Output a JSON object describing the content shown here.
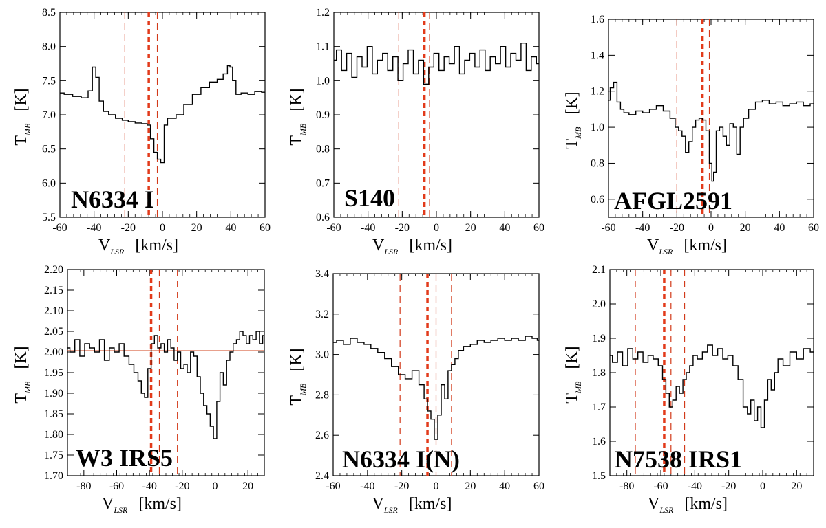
{
  "figure": {
    "description_free": true
  },
  "chart_data": [
    {
      "type": "line",
      "title": "N6334 I",
      "xlabel": "V_LSR [km/s]",
      "ylabel": "T_MB [K]",
      "xlim": [
        -60,
        60
      ],
      "ylim": [
        5.5,
        8.5
      ],
      "xticks": [
        -60,
        -40,
        -20,
        0,
        20,
        40,
        60
      ],
      "yticks": [
        "5.5",
        "6.0",
        "6.5",
        "7.0",
        "7.5",
        "8.0",
        "8.5"
      ],
      "thin_dashed_lines": [
        -22,
        -3
      ],
      "thick_dashed_lines": [
        -8
      ],
      "fit_line": null,
      "series": [
        {
          "name": "spectrum",
          "x": [
            -60,
            -55,
            -50,
            -45,
            -42,
            -40,
            -38,
            -36,
            -33,
            -30,
            -25,
            -22,
            -18,
            -14,
            -10,
            -8,
            -6,
            -4,
            -2,
            0,
            2,
            4,
            6,
            10,
            15,
            20,
            25,
            30,
            34,
            37,
            39,
            40,
            42,
            44,
            48,
            52,
            56,
            60
          ],
          "y": [
            7.32,
            7.3,
            7.27,
            7.25,
            7.35,
            7.7,
            7.55,
            7.2,
            7.05,
            7.0,
            6.95,
            6.92,
            6.9,
            6.88,
            6.87,
            6.85,
            6.65,
            6.45,
            6.35,
            6.3,
            6.85,
            6.95,
            6.95,
            7.0,
            7.15,
            7.3,
            7.4,
            7.48,
            7.52,
            7.6,
            7.72,
            7.7,
            7.5,
            7.3,
            7.32,
            7.3,
            7.34,
            7.33
          ]
        }
      ]
    },
    {
      "type": "line",
      "title": "S140",
      "xlabel": "V_LSR [km/s]",
      "ylabel": "T_MB [K]",
      "xlim": [
        -60,
        60
      ],
      "ylim": [
        0.6,
        1.2
      ],
      "xticks": [
        -60,
        -40,
        -20,
        0,
        20,
        40,
        60
      ],
      "yticks": [
        "0.6",
        "0.7",
        "0.8",
        "0.9",
        "1.0",
        "1.1",
        "1.2"
      ],
      "thin_dashed_lines": [
        -22,
        -4
      ],
      "thick_dashed_lines": [
        -7
      ],
      "fit_line": null,
      "series": [
        {
          "name": "spectrum",
          "x": [
            -60,
            -57,
            -54,
            -51,
            -48,
            -45,
            -42,
            -39,
            -36,
            -33,
            -30,
            -27,
            -24,
            -21,
            -18,
            -15,
            -12,
            -9,
            -6,
            -3,
            0,
            3,
            6,
            9,
            12,
            15,
            18,
            21,
            24,
            27,
            30,
            33,
            36,
            39,
            42,
            45,
            48,
            51,
            54,
            57,
            60
          ],
          "y": [
            1.06,
            1.09,
            1.03,
            1.08,
            1.01,
            1.07,
            1.04,
            1.1,
            1.02,
            1.06,
            1.08,
            1.03,
            1.07,
            1.0,
            1.05,
            1.09,
            1.02,
            1.06,
            0.99,
            1.04,
            1.08,
            1.03,
            1.07,
            1.05,
            1.1,
            1.02,
            1.06,
            1.08,
            1.04,
            1.09,
            1.03,
            1.07,
            1.05,
            1.1,
            1.04,
            1.08,
            1.06,
            1.11,
            1.03,
            1.07,
            1.05
          ]
        }
      ]
    },
    {
      "type": "line",
      "title": "AFGL2591",
      "xlabel": "V_LSR [km/s]",
      "ylabel": "T_MB [K]",
      "xlim": [
        -60,
        60
      ],
      "ylim": [
        0.5,
        1.6
      ],
      "xticks": [
        -60,
        -40,
        -20,
        0,
        20,
        40,
        60
      ],
      "yticks": [
        "0.6",
        "0.8",
        "1.0",
        "1.2",
        "1.4",
        "1.6"
      ],
      "thin_dashed_lines": [
        -20,
        -1
      ],
      "thick_dashed_lines": [
        -5
      ],
      "fit_line": null,
      "series": [
        {
          "name": "spectrum",
          "x": [
            -60,
            -58,
            -56,
            -54,
            -52,
            -50,
            -46,
            -42,
            -38,
            -34,
            -30,
            -26,
            -22,
            -20,
            -18,
            -16,
            -14,
            -12,
            -10,
            -8,
            -6,
            -4,
            -2,
            0,
            1,
            2,
            4,
            6,
            8,
            10,
            12,
            14,
            16,
            18,
            20,
            24,
            28,
            32,
            36,
            40,
            44,
            48,
            52,
            56,
            60
          ],
          "y": [
            1.15,
            1.22,
            1.25,
            1.14,
            1.1,
            1.08,
            1.07,
            1.09,
            1.08,
            1.1,
            1.12,
            1.09,
            1.05,
            1.0,
            0.98,
            0.95,
            0.86,
            0.92,
            1.0,
            1.04,
            1.05,
            1.04,
            0.98,
            0.8,
            0.7,
            0.75,
            0.98,
            1.0,
            0.95,
            0.9,
            1.02,
            1.0,
            0.85,
            1.0,
            1.05,
            1.1,
            1.14,
            1.15,
            1.13,
            1.14,
            1.12,
            1.13,
            1.14,
            1.12,
            1.13
          ]
        }
      ]
    },
    {
      "type": "line",
      "title": "W3 IRS5",
      "xlabel": "V_LSR [km/s]",
      "ylabel": "T_MB [K]",
      "xlim": [
        -90,
        30
      ],
      "ylim": [
        1.7,
        2.2
      ],
      "xticks": [
        -80,
        -60,
        -40,
        -20,
        0,
        20
      ],
      "yticks": [
        "1.70",
        "1.75",
        "1.80",
        "1.85",
        "1.90",
        "1.95",
        "2.00",
        "2.05",
        "2.10",
        "2.15",
        "2.20"
      ],
      "thin_dashed_lines": [
        -34,
        -23
      ],
      "thick_dashed_lines": [
        -39
      ],
      "fit_line": 2.003,
      "series": [
        {
          "name": "spectrum",
          "x": [
            -90,
            -87,
            -84,
            -81,
            -78,
            -75,
            -72,
            -69,
            -66,
            -63,
            -60,
            -57,
            -54,
            -51,
            -48,
            -46,
            -44,
            -42,
            -40,
            -38,
            -36,
            -34,
            -32,
            -30,
            -28,
            -26,
            -24,
            -22,
            -20,
            -18,
            -16,
            -14,
            -12,
            -10,
            -8,
            -6,
            -4,
            -2,
            0,
            2,
            4,
            6,
            8,
            10,
            12,
            14,
            16,
            18,
            20,
            22,
            24,
            26,
            28,
            30
          ],
          "y": [
            2.01,
            2.0,
            2.03,
            1.99,
            2.02,
            2.01,
            2.0,
            2.03,
            1.98,
            2.01,
            2.0,
            2.02,
            1.99,
            1.97,
            1.95,
            1.93,
            1.9,
            1.89,
            1.96,
            2.02,
            2.04,
            2.01,
            2.02,
            2.0,
            2.03,
            2.01,
            1.98,
            2.0,
            1.96,
            1.97,
            1.95,
            2.0,
            1.99,
            1.94,
            1.9,
            1.87,
            1.85,
            1.82,
            1.79,
            1.88,
            1.95,
            1.92,
            1.98,
            2.0,
            2.02,
            2.03,
            2.05,
            2.04,
            2.02,
            2.04,
            2.03,
            2.05,
            2.02,
            2.04
          ]
        }
      ]
    },
    {
      "type": "line",
      "title": "N6334 I(N)",
      "xlabel": "V_LSR [km/s]",
      "ylabel": "T_MB [K]",
      "xlim": [
        -60,
        60
      ],
      "ylim": [
        2.4,
        3.4
      ],
      "xticks": [
        -60,
        -40,
        -20,
        0,
        20,
        40,
        60
      ],
      "yticks": [
        "2.4",
        "2.6",
        "2.8",
        "3.0",
        "3.2",
        "3.4"
      ],
      "thin_dashed_lines": [
        -21,
        0,
        9
      ],
      "thick_dashed_lines": [
        -5
      ],
      "fit_line": null,
      "series": [
        {
          "name": "spectrum",
          "x": [
            -60,
            -56,
            -52,
            -48,
            -44,
            -40,
            -36,
            -32,
            -28,
            -24,
            -20,
            -16,
            -12,
            -8,
            -6,
            -4,
            -2,
            0,
            2,
            4,
            6,
            8,
            10,
            12,
            14,
            18,
            22,
            26,
            30,
            34,
            38,
            42,
            46,
            50,
            54,
            58,
            60
          ],
          "y": [
            3.06,
            3.07,
            3.05,
            3.08,
            3.06,
            3.05,
            3.03,
            3.01,
            2.98,
            2.94,
            2.9,
            2.88,
            2.92,
            2.85,
            2.78,
            2.72,
            2.68,
            2.58,
            2.7,
            2.85,
            2.78,
            2.92,
            2.95,
            2.98,
            3.02,
            3.04,
            3.05,
            3.07,
            3.06,
            3.07,
            3.08,
            3.07,
            3.08,
            3.07,
            3.09,
            3.08,
            3.07
          ]
        }
      ]
    },
    {
      "type": "line",
      "title": "N7538 IRS1",
      "xlabel": "V_LSR [km/s]",
      "ylabel": "T_MB [K]",
      "xlim": [
        -90,
        30
      ],
      "ylim": [
        1.5,
        2.1
      ],
      "xticks": [
        -80,
        -60,
        -40,
        -20,
        0,
        20
      ],
      "yticks": [
        "1.5",
        "1.6",
        "1.7",
        "1.8",
        "1.9",
        "2.0",
        "2.1"
      ],
      "thin_dashed_lines": [
        -75,
        -54,
        -46
      ],
      "thick_dashed_lines": [
        -58
      ],
      "fit_line": null,
      "series": [
        {
          "name": "spectrum",
          "x": [
            -90,
            -87,
            -84,
            -81,
            -78,
            -75,
            -72,
            -69,
            -66,
            -63,
            -60,
            -58,
            -56,
            -54,
            -52,
            -50,
            -48,
            -46,
            -44,
            -42,
            -40,
            -37,
            -34,
            -31,
            -28,
            -25,
            -22,
            -19,
            -16,
            -13,
            -10,
            -8,
            -6,
            -4,
            -2,
            0,
            2,
            4,
            6,
            8,
            10,
            14,
            18,
            22,
            26,
            30
          ],
          "y": [
            1.85,
            1.83,
            1.86,
            1.82,
            1.87,
            1.84,
            1.86,
            1.83,
            1.85,
            1.84,
            1.82,
            1.78,
            1.74,
            1.7,
            1.72,
            1.76,
            1.74,
            1.78,
            1.8,
            1.82,
            1.85,
            1.84,
            1.86,
            1.88,
            1.85,
            1.87,
            1.84,
            1.85,
            1.82,
            1.78,
            1.7,
            1.68,
            1.72,
            1.66,
            1.7,
            1.64,
            1.72,
            1.78,
            1.75,
            1.8,
            1.84,
            1.82,
            1.86,
            1.84,
            1.87,
            1.86
          ]
        }
      ]
    }
  ]
}
